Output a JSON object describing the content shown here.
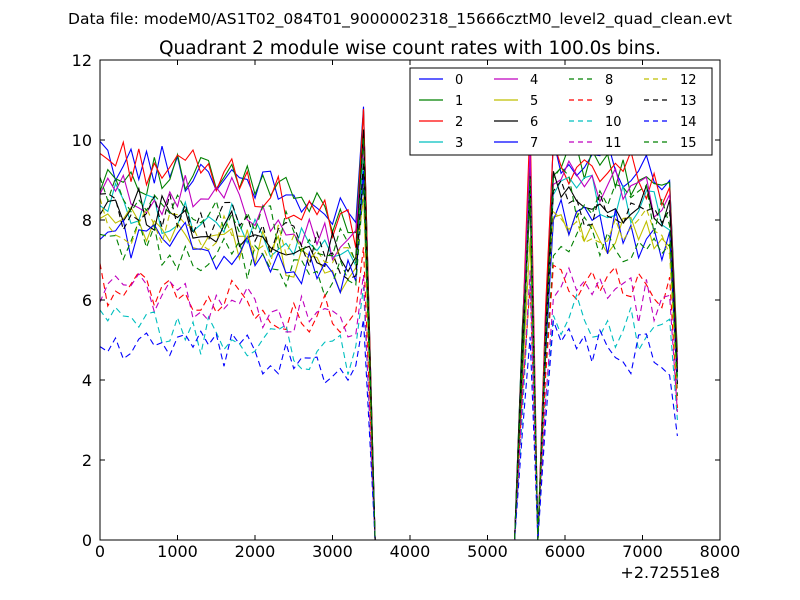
{
  "chart_data": {
    "type": "line",
    "suptitle": "Data file: modeM0/AS1T02_084T01_9000002318_15666cztM0_level2_quad_clean.evt",
    "title": "Quadrant 2 module wise count rates with 100.0s bins.",
    "xlabel": "",
    "ylabel": "",
    "x_offset_label": "+2.72551e8",
    "xlim": [
      0,
      8000
    ],
    "ylim": [
      0,
      12
    ],
    "xticks": [
      0,
      1000,
      2000,
      3000,
      4000,
      5000,
      6000,
      7000,
      8000
    ],
    "yticks": [
      0,
      2,
      4,
      6,
      8,
      10,
      12
    ],
    "grid": false,
    "legend_position": "top-right",
    "segments": [
      {
        "start": 0,
        "end": 3450,
        "step": 100
      },
      {
        "start": 3550,
        "end": 5350,
        "step": 300
      },
      {
        "start": 5450,
        "end": 5550,
        "step": 100
      },
      {
        "start": 5650,
        "end": 5650,
        "step": 100
      },
      {
        "start": 5750,
        "end": 7450,
        "step": 100
      }
    ],
    "series": [
      {
        "name": "0",
        "color": "#0000ff",
        "dash": "solid",
        "base": [
          9.5,
          9.1,
          7.8,
          9.6
        ],
        "end": 4.5
      },
      {
        "name": "1",
        "color": "#008000",
        "dash": "solid",
        "base": [
          9.2,
          9.0,
          7.9,
          9.3
        ],
        "end": 4.7
      },
      {
        "name": "2",
        "color": "#ff0000",
        "dash": "solid",
        "base": [
          9.6,
          9.0,
          7.6,
          9.4
        ],
        "end": 4.4
      },
      {
        "name": "3",
        "color": "#00bfbf",
        "dash": "solid",
        "base": [
          8.5,
          7.8,
          6.9,
          8.7
        ],
        "end": 4.1
      },
      {
        "name": "4",
        "color": "#bf00bf",
        "dash": "solid",
        "base": [
          8.7,
          8.5,
          7.2,
          9.0
        ],
        "end": 4.3
      },
      {
        "name": "5",
        "color": "#bfbf00",
        "dash": "solid",
        "base": [
          7.9,
          7.4,
          6.6,
          7.8
        ],
        "end": 3.9
      },
      {
        "name": "6",
        "color": "#000000",
        "dash": "solid",
        "base": [
          8.5,
          7.8,
          7.0,
          8.6
        ],
        "end": 4.2
      },
      {
        "name": "7",
        "color": "#0000ff",
        "dash": "solid",
        "base": [
          7.7,
          7.2,
          6.5,
          7.8
        ],
        "end": 3.8
      },
      {
        "name": "8",
        "color": "#008000",
        "dash": "dashed",
        "base": [
          7.6,
          7.0,
          6.4,
          7.5
        ],
        "end": 3.6
      },
      {
        "name": "9",
        "color": "#ff0000",
        "dash": "dashed",
        "base": [
          6.4,
          6.0,
          5.4,
          6.4
        ],
        "end": 3.3
      },
      {
        "name": "10",
        "color": "#00bfbf",
        "dash": "dashed",
        "base": [
          5.4,
          5.0,
          4.6,
          5.5
        ],
        "end": 3.0
      },
      {
        "name": "11",
        "color": "#bf00bf",
        "dash": "dashed",
        "base": [
          6.3,
          5.9,
          5.2,
          6.2
        ],
        "end": 3.2
      },
      {
        "name": "12",
        "color": "#bfbf00",
        "dash": "dashed",
        "base": [
          8.0,
          7.6,
          6.8,
          8.0
        ],
        "end": 3.7
      },
      {
        "name": "13",
        "color": "#000000",
        "dash": "dashed",
        "base": [
          8.3,
          7.9,
          6.9,
          8.3
        ],
        "end": 3.9
      },
      {
        "name": "14",
        "color": "#0000ff",
        "dash": "dashed",
        "base": [
          4.9,
          4.6,
          4.3,
          4.8
        ],
        "end": 2.6
      },
      {
        "name": "15",
        "color": "#008000",
        "dash": "dashed",
        "base": [
          8.6,
          8.1,
          7.1,
          8.6
        ],
        "end": 4.0
      }
    ]
  }
}
